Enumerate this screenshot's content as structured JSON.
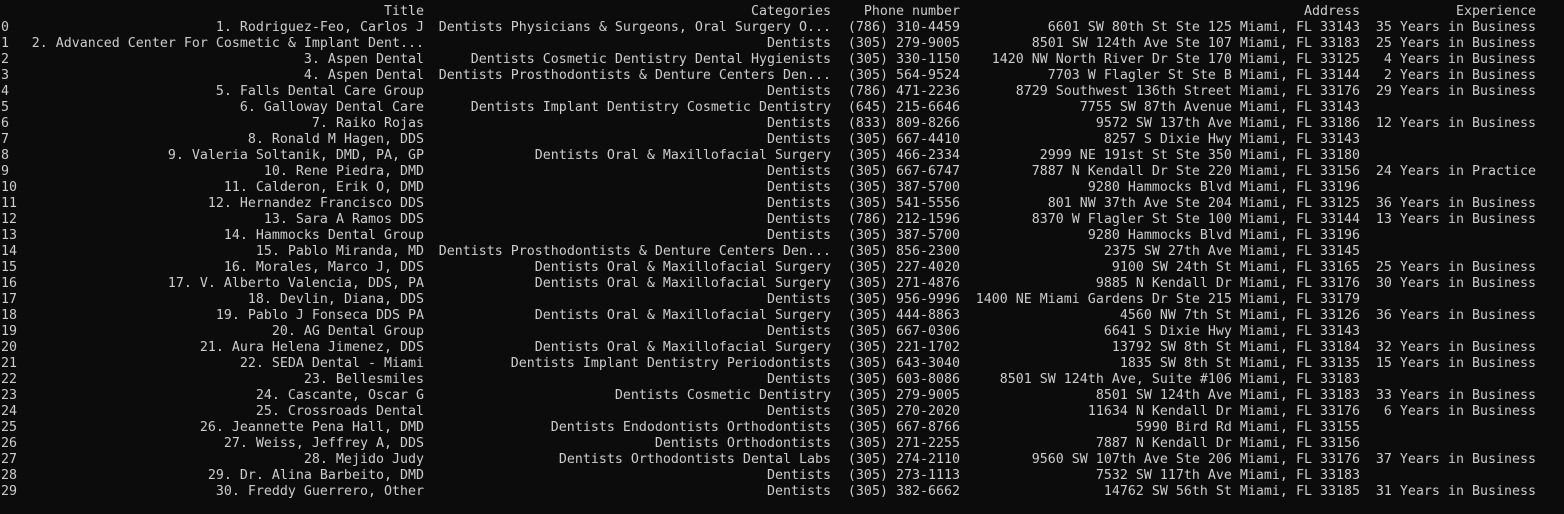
{
  "columns": {
    "title": "Title",
    "categories": "Categories",
    "phone": "Phone number",
    "address": "Address",
    "experience": "Experience"
  },
  "rows": [
    [
      "0",
      "1. Rodriguez-Feo, Carlos J",
      "Dentists Physicians & Surgeons, Oral Surgery O...",
      "(786) 310-4459",
      "6601 SW 80th St Ste 125 Miami, FL 33143",
      "35 Years in Business"
    ],
    [
      "1",
      "2. Advanced Center For Cosmetic & Implant Dent...",
      "Dentists",
      "(305) 279-9005",
      "8501 SW 124th Ave Ste 107 Miami, FL 33183",
      "25 Years in Business"
    ],
    [
      "2",
      "3. Aspen Dental",
      "Dentists Cosmetic Dentistry Dental Hygienists",
      "(305) 330-1150",
      "1420 NW North River Dr Ste 170 Miami, FL 33125",
      "4 Years in Business"
    ],
    [
      "3",
      "4. Aspen Dental",
      "Dentists Prosthodontists & Denture Centers Den...",
      "(305) 564-9524",
      "7703 W Flagler St Ste B Miami, FL 33144",
      "2 Years in Business"
    ],
    [
      "4",
      "5. Falls Dental Care Group",
      "Dentists",
      "(786) 471-2236",
      "8729 Southwest 136th Street Miami, FL 33176",
      "29 Years in Business"
    ],
    [
      "5",
      "6. Galloway Dental Care",
      "Dentists Implant Dentistry Cosmetic Dentistry",
      "(645) 215-6646",
      "7755 SW 87th Avenue Miami, FL 33143",
      ""
    ],
    [
      "6",
      "7. Raiko Rojas",
      "Dentists",
      "(833) 809-8266",
      "9572 SW 137th Ave Miami, FL 33186",
      "12 Years in Business"
    ],
    [
      "7",
      "8. Ronald M Hagen, DDS",
      "Dentists",
      "(305) 667-4410",
      "8257 S Dixie Hwy Miami, FL 33143",
      ""
    ],
    [
      "8",
      "9. Valeria Soltanik, DMD, PA, GP",
      "Dentists Oral & Maxillofacial Surgery",
      "(305) 466-2334",
      "2999 NE 191st St Ste 350 Miami, FL 33180",
      ""
    ],
    [
      "9",
      "10. Rene Piedra, DMD",
      "Dentists",
      "(305) 667-6747",
      "7887 N Kendall Dr Ste 220 Miami, FL 33156",
      "24 Years in Practice"
    ],
    [
      "10",
      "11. Calderon, Erik O, DMD",
      "Dentists",
      "(305) 387-5700",
      "9280 Hammocks Blvd Miami, FL 33196",
      ""
    ],
    [
      "11",
      "12. Hernandez Francisco DDS",
      "Dentists",
      "(305) 541-5556",
      "801 NW 37th Ave Ste 204 Miami, FL 33125",
      "36 Years in Business"
    ],
    [
      "12",
      "13. Sara A Ramos DDS",
      "Dentists",
      "(786) 212-1596",
      "8370 W Flagler St Ste 100 Miami, FL 33144",
      "13 Years in Business"
    ],
    [
      "13",
      "14. Hammocks Dental Group",
      "Dentists",
      "(305) 387-5700",
      "9280 Hammocks Blvd Miami, FL 33196",
      ""
    ],
    [
      "14",
      "15. Pablo Miranda, MD",
      "Dentists Prosthodontists & Denture Centers Den...",
      "(305) 856-2300",
      "2375 SW 27th Ave Miami, FL 33145",
      ""
    ],
    [
      "15",
      "16. Morales, Marco J, DDS",
      "Dentists Oral & Maxillofacial Surgery",
      "(305) 227-4020",
      "9100 SW 24th St Miami, FL 33165",
      "25 Years in Business"
    ],
    [
      "16",
      "17. V. Alberto Valencia, DDS, PA",
      "Dentists Oral & Maxillofacial Surgery",
      "(305) 271-4876",
      "9885 N Kendall Dr Miami, FL 33176",
      "30 Years in Business"
    ],
    [
      "17",
      "18. Devlin, Diana, DDS",
      "Dentists",
      "(305) 956-9996",
      "1400 NE Miami Gardens Dr Ste 215 Miami, FL 33179",
      ""
    ],
    [
      "18",
      "19. Pablo J Fonseca DDS PA",
      "Dentists Oral & Maxillofacial Surgery",
      "(305) 444-8863",
      "4560 NW 7th St Miami, FL 33126",
      "36 Years in Business"
    ],
    [
      "19",
      "20. AG Dental Group",
      "Dentists",
      "(305) 667-0306",
      "6641 S Dixie Hwy Miami, FL 33143",
      ""
    ],
    [
      "20",
      "21. Aura Helena Jimenez, DDS",
      "Dentists Oral & Maxillofacial Surgery",
      "(305) 221-1702",
      "13792 SW 8th St Miami, FL 33184",
      "32 Years in Business"
    ],
    [
      "21",
      "22. SEDA Dental - Miami",
      "Dentists Implant Dentistry Periodontists",
      "(305) 643-3040",
      "1835 SW 8th St Miami, FL 33135",
      "15 Years in Business"
    ],
    [
      "22",
      "23. Bellesmiles",
      "Dentists",
      "(305) 603-8086",
      "8501 SW 124th Ave, Suite #106 Miami, FL 33183",
      ""
    ],
    [
      "23",
      "24. Cascante, Oscar G",
      "Dentists Cosmetic Dentistry",
      "(305) 279-9005",
      "8501 SW 124th Ave Miami, FL 33183",
      "33 Years in Business"
    ],
    [
      "24",
      "25. Crossroads Dental",
      "Dentists",
      "(305) 270-2020",
      "11634 N Kendall Dr Miami, FL 33176",
      "6 Years in Business"
    ],
    [
      "25",
      "26. Jeannette Pena Hall, DMD",
      "Dentists Endodontists Orthodontists",
      "(305) 667-8766",
      "5990 Bird Rd Miami, FL 33155",
      ""
    ],
    [
      "26",
      "27. Weiss, Jeffrey A, DDS",
      "Dentists Orthodontists",
      "(305) 271-2255",
      "7887 N Kendall Dr Miami, FL 33156",
      ""
    ],
    [
      "27",
      "28. Mejido Judy",
      "Dentists Orthodontists Dental Labs",
      "(305) 274-2110",
      "9560 SW 107th Ave Ste 206 Miami, FL 33176",
      "37 Years in Business"
    ],
    [
      "28",
      "29. Dr. Alina Barbeito, DMD",
      "Dentists",
      "(305) 273-1113",
      "7532 SW 117th Ave Miami, FL 33183",
      ""
    ],
    [
      "29",
      "30. Freddy Guerrero, Other",
      "Dentists",
      "(305) 382-6662",
      "14762 SW 56th St Miami, FL 33185",
      "31 Years in Business"
    ]
  ]
}
